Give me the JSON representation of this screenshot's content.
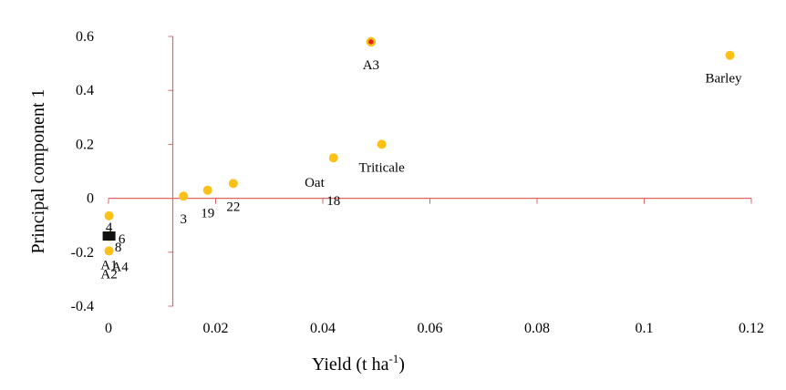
{
  "chart_data": {
    "type": "scatter",
    "xlabel": "Yield (t ha",
    "xlabel_sup": "-1",
    "xlabel_close": ")",
    "ylabel": "Principal component 1",
    "xlim": [
      0,
      0.12
    ],
    "ylim": [
      -0.4,
      0.6
    ],
    "x_ticks": [
      "0",
      "0.02",
      "0.04",
      "0.06",
      "0.08",
      "0.1",
      "0.12"
    ],
    "y_ticks": [
      "-0.4",
      "-0.2",
      "0",
      "0.2",
      "0.4",
      "0.6"
    ],
    "axis_cross_x": 0.012,
    "grid": false,
    "colors": {
      "axis": "#e06666",
      "point": "#fcc016",
      "highlight": "#e52420"
    },
    "points": [
      {
        "label": "Barley",
        "x": 0.116,
        "y": 0.53
      },
      {
        "label": "A3",
        "x": 0.049,
        "y": 0.58,
        "highlight": true
      },
      {
        "label": "Triticale",
        "x": 0.051,
        "y": 0.2
      },
      {
        "label": "Oat",
        "x": 0.042,
        "y": 0.15
      },
      {
        "label": "18",
        "x": 0.042,
        "y": 0.15
      },
      {
        "label": "22",
        "x": 0.0233,
        "y": 0.055
      },
      {
        "label": "19",
        "x": 0.0185,
        "y": 0.03
      },
      {
        "label": "3",
        "x": 0.014,
        "y": 0.008
      },
      {
        "label": "4",
        "x": 0.0001,
        "y": -0.065
      },
      {
        "label": "8",
        "x": 0.0001,
        "y": -0.14
      },
      {
        "label": "6",
        "x": 0.0001,
        "y": -0.14
      },
      {
        "label": "A1",
        "x": 0.0001,
        "y": -0.195
      },
      {
        "label": "A2",
        "x": 0.0001,
        "y": -0.195
      },
      {
        "label": "A4",
        "x": 0.0001,
        "y": -0.195
      }
    ]
  }
}
